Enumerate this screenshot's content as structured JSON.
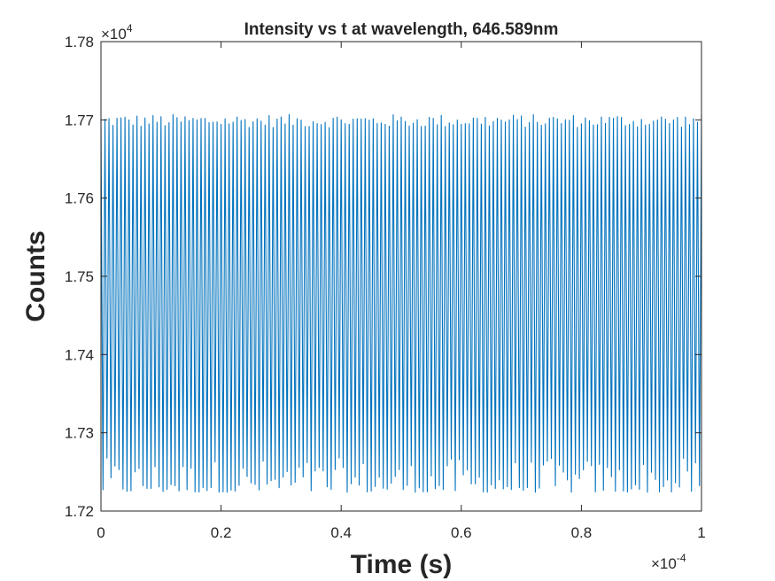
{
  "chart_data": {
    "type": "line",
    "title": "Intensity vs t at wavelength, 646.589nm",
    "xlabel": "Time (s)",
    "ylabel": "Counts",
    "x_multiplier": "×10^-4",
    "y_multiplier": "×10^4",
    "x_multiplier_base": "×10",
    "x_multiplier_exp": "-4",
    "y_multiplier_base": "×10",
    "y_multiplier_exp": "4",
    "xlim": [
      0,
      0.0001
    ],
    "ylim": [
      17200,
      17800
    ],
    "x_ticks": [
      0,
      2e-05,
      4e-05,
      6e-05,
      8e-05,
      0.0001
    ],
    "x_tick_labels": [
      "0",
      "0.2",
      "0.4",
      "0.6",
      "0.8",
      "1"
    ],
    "y_ticks": [
      17200,
      17300,
      17400,
      17500,
      17600,
      17700,
      17800
    ],
    "y_tick_labels": [
      "1.72",
      "1.73",
      "1.74",
      "1.75",
      "1.76",
      "1.77",
      "1.78"
    ],
    "grid": false,
    "series": [
      {
        "color": "#0072BD",
        "oscillation": {
          "cycles": 150,
          "peak_mean": 17697,
          "peak_min": 17690,
          "peak_max": 17707,
          "trough_mean": 17237,
          "trough_min": 17224,
          "trough_max": 17268
        }
      }
    ]
  }
}
